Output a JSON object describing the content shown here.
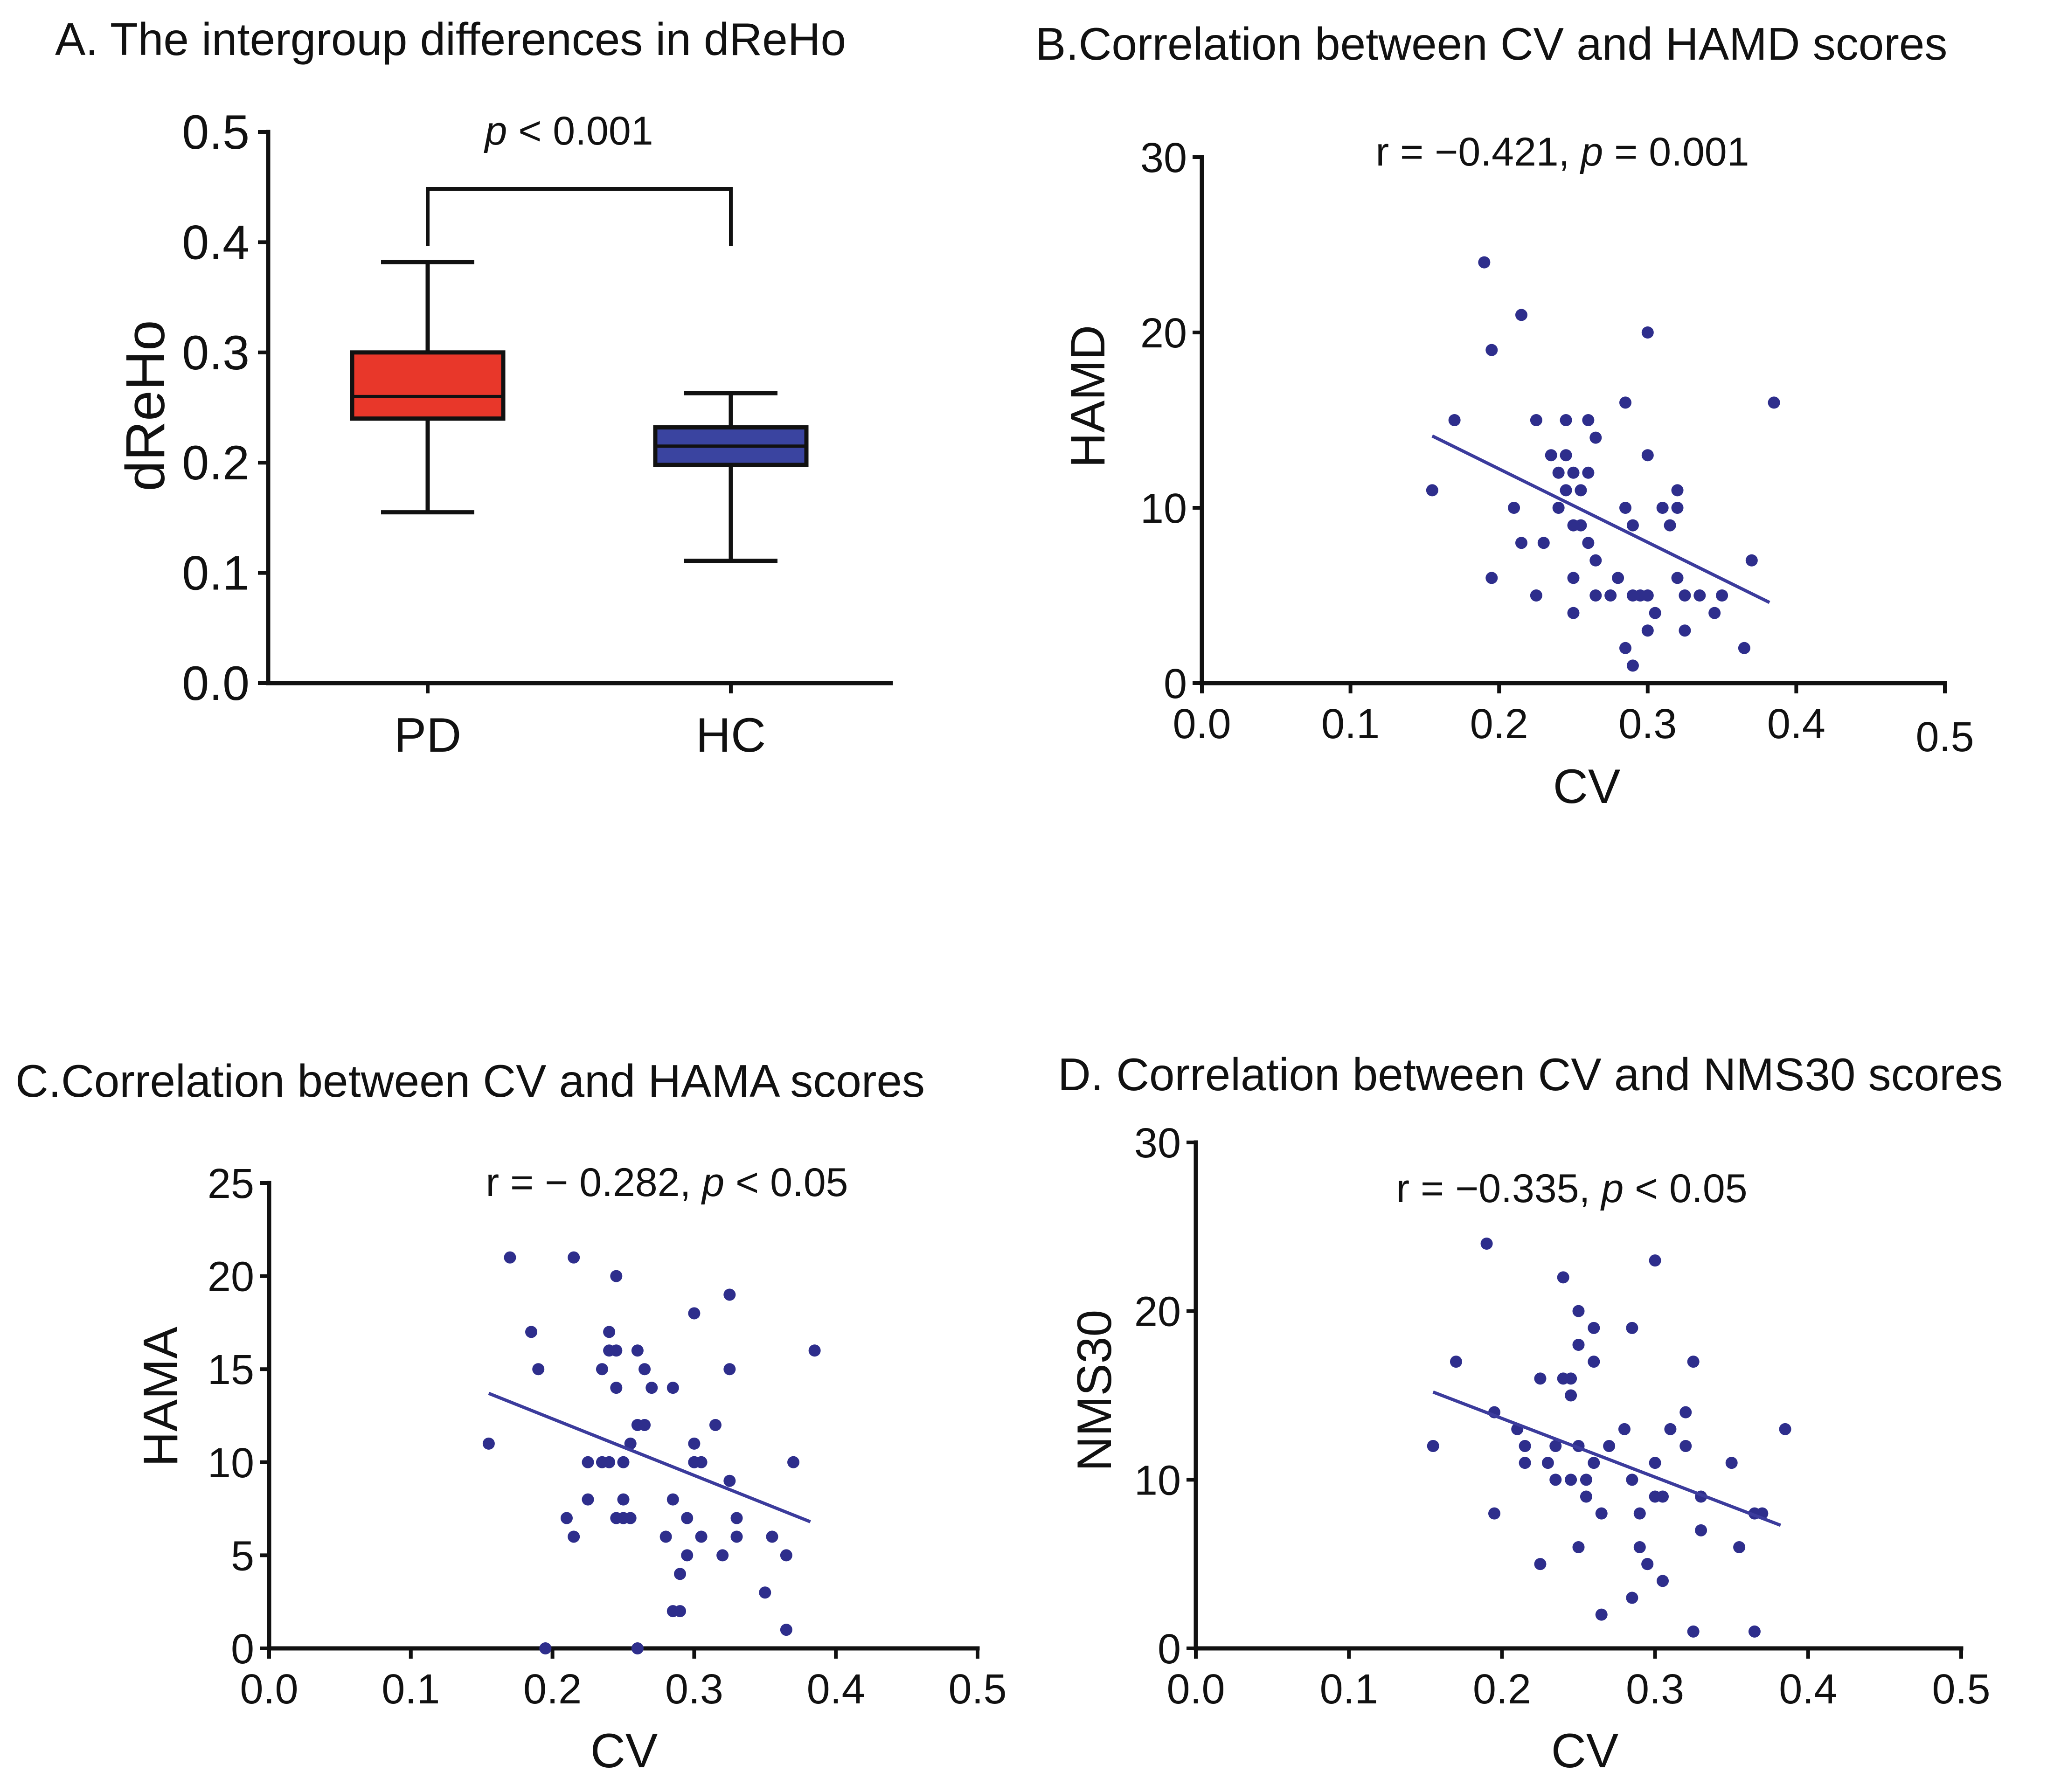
{
  "chart_data": [
    {
      "id": "A",
      "type": "box",
      "title": "A. The intergroup differences in dReHo",
      "ylabel": "dReHo",
      "xlabel": "",
      "ylim": [
        0,
        0.5
      ],
      "yticks": [
        "0.0",
        "0.1",
        "0.2",
        "0.3",
        "0.4",
        "0.5"
      ],
      "categories": [
        "PD",
        "HC"
      ],
      "boxes": [
        {
          "name": "PD",
          "min": 0.155,
          "q1": 0.24,
          "median": 0.26,
          "q3": 0.3,
          "max": 0.382,
          "color": "#e8372a"
        },
        {
          "name": "HC",
          "min": 0.111,
          "q1": 0.198,
          "median": 0.215,
          "q3": 0.232,
          "max": 0.263,
          "color": "#3a44a0"
        }
      ],
      "annotation": {
        "italic": "p",
        "text": " < 0.001"
      }
    },
    {
      "id": "B",
      "type": "scatter",
      "title": "B.Correlation between CV and HAMD scores",
      "xlabel": "CV",
      "ylabel": "HAMD",
      "xlim": [
        0,
        0.5
      ],
      "ylim": [
        0,
        30
      ],
      "xticks": [
        "0.0",
        "0.1",
        "0.2",
        "0.3",
        "0.4",
        "0.5"
      ],
      "yticks": [
        "0",
        "10",
        "20",
        "30"
      ],
      "annotation": {
        "pre": "r = −0.421, ",
        "italic": "p",
        "post": " = 0.001"
      },
      "fit": {
        "x": [
          0.155,
          0.382
        ],
        "y": [
          14.1,
          4.6
        ]
      },
      "points": [
        [
          0.155,
          11
        ],
        [
          0.17,
          15
        ],
        [
          0.19,
          24
        ],
        [
          0.195,
          19
        ],
        [
          0.195,
          6
        ],
        [
          0.215,
          21
        ],
        [
          0.225,
          15
        ],
        [
          0.23,
          8
        ],
        [
          0.21,
          10
        ],
        [
          0.215,
          8
        ],
        [
          0.225,
          5
        ],
        [
          0.235,
          13
        ],
        [
          0.24,
          10
        ],
        [
          0.24,
          12
        ],
        [
          0.245,
          15
        ],
        [
          0.245,
          13
        ],
        [
          0.245,
          11
        ],
        [
          0.25,
          9
        ],
        [
          0.25,
          6
        ],
        [
          0.25,
          4
        ],
        [
          0.25,
          12
        ],
        [
          0.255,
          11
        ],
        [
          0.255,
          9
        ],
        [
          0.26,
          8
        ],
        [
          0.26,
          12
        ],
        [
          0.265,
          7
        ],
        [
          0.265,
          5
        ],
        [
          0.26,
          15
        ],
        [
          0.265,
          14
        ],
        [
          0.275,
          5
        ],
        [
          0.28,
          6
        ],
        [
          0.285,
          10
        ],
        [
          0.285,
          16
        ],
        [
          0.285,
          2
        ],
        [
          0.29,
          9
        ],
        [
          0.29,
          5
        ],
        [
          0.29,
          1
        ],
        [
          0.295,
          5
        ],
        [
          0.3,
          13
        ],
        [
          0.3,
          20
        ],
        [
          0.3,
          5
        ],
        [
          0.305,
          4
        ],
        [
          0.3,
          3
        ],
        [
          0.31,
          10
        ],
        [
          0.315,
          9
        ],
        [
          0.32,
          11
        ],
        [
          0.32,
          10
        ],
        [
          0.32,
          6
        ],
        [
          0.325,
          5
        ],
        [
          0.325,
          3
        ],
        [
          0.335,
          5
        ],
        [
          0.345,
          4
        ],
        [
          0.35,
          5
        ],
        [
          0.365,
          2
        ],
        [
          0.37,
          7
        ],
        [
          0.385,
          16
        ]
      ]
    },
    {
      "id": "C",
      "type": "scatter",
      "title": "C.Correlation between CV and HAMA scores",
      "xlabel": "CV",
      "ylabel": "HAMA",
      "xlim": [
        0,
        0.5
      ],
      "ylim": [
        0,
        25
      ],
      "xticks": [
        "0.0",
        "0.1",
        "0.2",
        "0.3",
        "0.4",
        "0.5"
      ],
      "yticks": [
        "0",
        "5",
        "10",
        "15",
        "20",
        "25"
      ],
      "annotation": {
        "pre": "r = − 0.282, ",
        "italic": "p",
        "post": " < 0.05"
      },
      "fit": {
        "x": [
          0.155,
          0.382
        ],
        "y": [
          13.7,
          6.8
        ]
      },
      "points": [
        [
          0.155,
          11
        ],
        [
          0.17,
          21
        ],
        [
          0.185,
          17
        ],
        [
          0.19,
          15
        ],
        [
          0.195,
          0
        ],
        [
          0.21,
          7
        ],
        [
          0.215,
          21
        ],
        [
          0.215,
          6
        ],
        [
          0.225,
          8
        ],
        [
          0.225,
          10
        ],
        [
          0.235,
          15
        ],
        [
          0.235,
          10
        ],
        [
          0.24,
          17
        ],
        [
          0.24,
          16
        ],
        [
          0.24,
          10
        ],
        [
          0.245,
          20
        ],
        [
          0.245,
          16
        ],
        [
          0.245,
          7
        ],
        [
          0.245,
          14
        ],
        [
          0.25,
          8
        ],
        [
          0.25,
          7
        ],
        [
          0.25,
          10
        ],
        [
          0.255,
          11
        ],
        [
          0.255,
          7
        ],
        [
          0.26,
          16
        ],
        [
          0.26,
          12
        ],
        [
          0.26,
          0
        ],
        [
          0.265,
          15
        ],
        [
          0.265,
          12
        ],
        [
          0.27,
          14
        ],
        [
          0.28,
          6
        ],
        [
          0.285,
          14
        ],
        [
          0.285,
          8
        ],
        [
          0.285,
          2
        ],
        [
          0.29,
          4
        ],
        [
          0.29,
          2
        ],
        [
          0.295,
          5
        ],
        [
          0.295,
          7
        ],
        [
          0.3,
          11
        ],
        [
          0.3,
          10
        ],
        [
          0.3,
          10
        ],
        [
          0.3,
          18
        ],
        [
          0.305,
          10
        ],
        [
          0.305,
          6
        ],
        [
          0.315,
          12
        ],
        [
          0.32,
          5
        ],
        [
          0.325,
          19
        ],
        [
          0.325,
          15
        ],
        [
          0.325,
          9
        ],
        [
          0.33,
          7
        ],
        [
          0.33,
          6
        ],
        [
          0.35,
          3
        ],
        [
          0.355,
          6
        ],
        [
          0.365,
          5
        ],
        [
          0.365,
          1
        ],
        [
          0.37,
          10
        ],
        [
          0.385,
          16
        ]
      ]
    },
    {
      "id": "D",
      "type": "scatter",
      "title": "D. Correlation between CV and NMS30 scores",
      "xlabel": "CV",
      "ylabel": "NMS30",
      "xlim": [
        0,
        0.5
      ],
      "ylim": [
        0,
        30
      ],
      "xticks": [
        "0.0",
        "0.1",
        "0.2",
        "0.3",
        "0.4",
        "0.5"
      ],
      "yticks": [
        "0",
        "10",
        "20",
        "30"
      ],
      "annotation": {
        "pre": "r = −0.335, ",
        "italic": "p",
        "post": " < 0.05"
      },
      "fit": {
        "x": [
          0.155,
          0.382
        ],
        "y": [
          15.2,
          7.3
        ]
      },
      "points": [
        [
          0.155,
          12
        ],
        [
          0.17,
          17
        ],
        [
          0.19,
          24
        ],
        [
          0.195,
          14
        ],
        [
          0.195,
          8
        ],
        [
          0.21,
          13
        ],
        [
          0.215,
          11
        ],
        [
          0.215,
          12
        ],
        [
          0.225,
          16
        ],
        [
          0.225,
          5
        ],
        [
          0.23,
          11
        ],
        [
          0.235,
          12
        ],
        [
          0.235,
          10
        ],
        [
          0.24,
          16
        ],
        [
          0.24,
          22
        ],
        [
          0.245,
          16
        ],
        [
          0.245,
          10
        ],
        [
          0.245,
          15
        ],
        [
          0.25,
          20
        ],
        [
          0.25,
          18
        ],
        [
          0.25,
          12
        ],
        [
          0.25,
          6
        ],
        [
          0.255,
          10
        ],
        [
          0.255,
          9
        ],
        [
          0.26,
          17
        ],
        [
          0.26,
          11
        ],
        [
          0.26,
          19
        ],
        [
          0.265,
          8
        ],
        [
          0.265,
          2
        ],
        [
          0.27,
          12
        ],
        [
          0.28,
          13
        ],
        [
          0.285,
          19
        ],
        [
          0.285,
          10
        ],
        [
          0.285,
          3
        ],
        [
          0.29,
          8
        ],
        [
          0.29,
          6
        ],
        [
          0.295,
          5
        ],
        [
          0.295,
          5
        ],
        [
          0.3,
          23
        ],
        [
          0.3,
          11
        ],
        [
          0.3,
          9
        ],
        [
          0.305,
          9
        ],
        [
          0.305,
          4
        ],
        [
          0.31,
          13
        ],
        [
          0.32,
          14
        ],
        [
          0.32,
          12
        ],
        [
          0.325,
          17
        ],
        [
          0.325,
          1
        ],
        [
          0.33,
          9
        ],
        [
          0.33,
          7
        ],
        [
          0.35,
          11
        ],
        [
          0.355,
          6
        ],
        [
          0.365,
          8
        ],
        [
          0.365,
          1
        ],
        [
          0.37,
          8
        ],
        [
          0.385,
          13
        ]
      ]
    }
  ]
}
